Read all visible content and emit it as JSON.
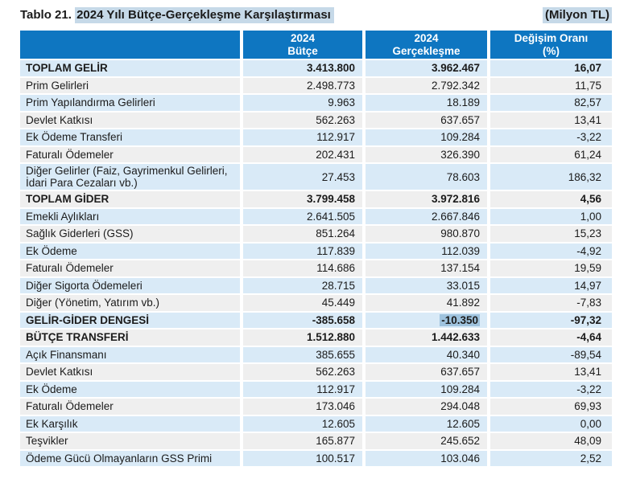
{
  "page": {
    "title_prefix": "Tablo 21.",
    "title_highlight": "2024 Yılı Bütçe-Gerçekleşme Karşılaştırması",
    "unit_label": "(Milyon TL)"
  },
  "colors": {
    "header_bg": "#0e76c1",
    "row_blue": "#d9eaf7",
    "row_gray": "#efefef",
    "title_highlight_bg": "#c6d9e8",
    "selection_highlight_bg": "#9fc3de"
  },
  "table": {
    "headers": {
      "col2_line1": "2024",
      "col2_line2": "Bütçe",
      "col3_line1": "2024",
      "col3_line2": "Gerçekleşme",
      "col4_line1": "Değişim Oranı",
      "col4_line2": "(%)"
    },
    "rows": [
      {
        "label": "TOPLAM GELİR",
        "budget": "3.413.800",
        "actual": "3.962.467",
        "change": "16,07"
      },
      {
        "label": "Prim Gelirleri",
        "budget": "2.498.773",
        "actual": "2.792.342",
        "change": "11,75"
      },
      {
        "label": "Prim Yapılandırma Gelirleri",
        "budget": "9.963",
        "actual": "18.189",
        "change": "82,57"
      },
      {
        "label": "Devlet Katkısı",
        "budget": "562.263",
        "actual": "637.657",
        "change": "13,41"
      },
      {
        "label": "Ek Ödeme Transferi",
        "budget": "112.917",
        "actual": "109.284",
        "change": "-3,22"
      },
      {
        "label": "Faturalı Ödemeler",
        "budget": "202.431",
        "actual": "326.390",
        "change": "61,24"
      },
      {
        "label": "Diğer Gelirler (Faiz, Gayrimenkul Gelirleri, İdari Para Cezaları vb.)",
        "budget": "27.453",
        "actual": "78.603",
        "change": "186,32"
      },
      {
        "label": "TOPLAM GİDER",
        "budget": "3.799.458",
        "actual": "3.972.816",
        "change": "4,56"
      },
      {
        "label": "Emekli Aylıkları",
        "budget": "2.641.505",
        "actual": "2.667.846",
        "change": "1,00"
      },
      {
        "label": "Sağlık Giderleri (GSS)",
        "budget": "851.264",
        "actual": "980.870",
        "change": "15,23"
      },
      {
        "label": "Ek Ödeme",
        "budget": "117.839",
        "actual": "112.039",
        "change": "-4,92"
      },
      {
        "label": "Faturalı Ödemeler",
        "budget": "114.686",
        "actual": "137.154",
        "change": "19,59"
      },
      {
        "label": "Diğer Sigorta Ödemeleri",
        "budget": "28.715",
        "actual": "33.015",
        "change": "14,97"
      },
      {
        "label": "Diğer (Yönetim, Yatırım vb.)",
        "budget": "45.449",
        "actual": "41.892",
        "change": "-7,83"
      },
      {
        "label": "GELİR-GİDER DENGESİ",
        "budget": "-385.658",
        "actual": "-10.350",
        "change": "-97,32"
      },
      {
        "label": "BÜTÇE TRANSFERİ",
        "budget": "1.512.880",
        "actual": "1.442.633",
        "change": "-4,64"
      },
      {
        "label": "Açık Finansmanı",
        "budget": "385.655",
        "actual": "40.340",
        "change": "-89,54"
      },
      {
        "label": "Devlet Katkısı",
        "budget": "562.263",
        "actual": "637.657",
        "change": "13,41"
      },
      {
        "label": "Ek Ödeme",
        "budget": "112.917",
        "actual": "109.284",
        "change": "-3,22"
      },
      {
        "label": "Faturalı Ödemeler",
        "budget": "173.046",
        "actual": "294.048",
        "change": "69,93"
      },
      {
        "label": "Ek Karşılık",
        "budget": "12.605",
        "actual": "12.605",
        "change": "0,00"
      },
      {
        "label": "Teşvikler",
        "budget": "165.877",
        "actual": "245.652",
        "change": "48,09"
      },
      {
        "label": "Ödeme Gücü Olmayanların GSS Primi",
        "budget": "100.517",
        "actual": "103.046",
        "change": "2,52"
      }
    ]
  }
}
